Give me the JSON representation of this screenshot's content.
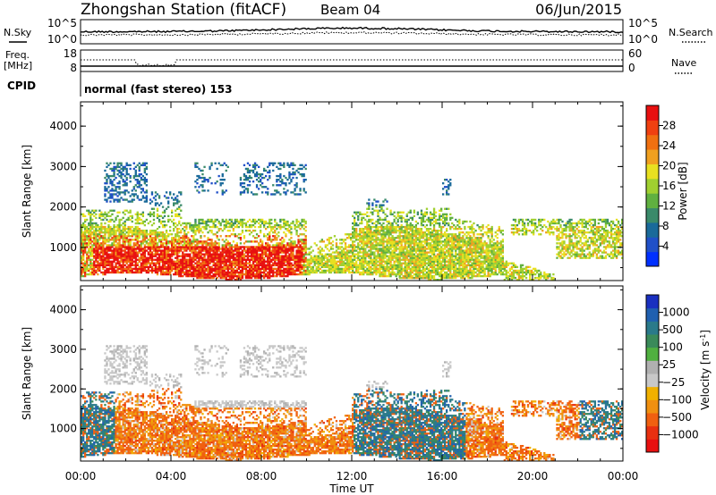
{
  "header": {
    "title": "Zhongshan Station (fitACF)",
    "beam": "Beam 04",
    "date": "06/Jun/2015"
  },
  "status_panels": {
    "nsky_label": "N.Sky",
    "nsearch_label": "N.Search",
    "freq_label_line1": "Freq.",
    "freq_label_line2": "[MHz]",
    "nave_label": "Nave",
    "cpid_label": "CPID",
    "cpid_text": "normal (fast stereo) 153",
    "noise_left_ticks": [
      "10^5",
      "10^0"
    ],
    "noise_right_ticks": [
      "10^5",
      "10^0"
    ],
    "freq_left_ticks": [
      "18",
      "8"
    ],
    "nave_right_ticks": [
      "60",
      "0"
    ]
  },
  "chart_data": [
    {
      "type": "heatmap",
      "name": "power",
      "xlabel": "Time UT",
      "ylabel": "Slant Range [km]",
      "x_ticks": [
        "00:00",
        "04:00",
        "08:00",
        "12:00",
        "16:00",
        "20:00",
        "00:00"
      ],
      "y_ticks": [
        1000,
        2000,
        3000,
        4000
      ],
      "ylim": [
        180,
        4600
      ],
      "xlim_hours": [
        0,
        24
      ],
      "colorbar_label": "Power [dB]",
      "colorbar_ticks": [
        "4",
        "8",
        "12",
        "16",
        "20",
        "24",
        "28"
      ],
      "colorbar_colors": [
        "#0030ff",
        "#2050c8",
        "#1a6a9a",
        "#3a8a6a",
        "#60b040",
        "#a0d030",
        "#e8e020",
        "#f0a020",
        "#f07010",
        "#f04010",
        "#e81010"
      ],
      "value_range": [
        0,
        30
      ]
    },
    {
      "type": "heatmap",
      "name": "velocity",
      "xlabel": "Time UT",
      "ylabel": "Slant Range [km]",
      "x_ticks": [
        "00:00",
        "04:00",
        "08:00",
        "12:00",
        "16:00",
        "20:00",
        "00:00"
      ],
      "y_ticks": [
        1000,
        2000,
        3000,
        4000
      ],
      "ylim": [
        180,
        4600
      ],
      "xlim_hours": [
        0,
        24
      ],
      "colorbar_label": "Velocity [m s",
      "colorbar_label_sup": "-1",
      "colorbar_label_end": "]",
      "colorbar_ticks": [
        "1000",
        "500",
        "100",
        "25",
        "−25",
        "−100",
        "−500",
        "−1000"
      ],
      "colorbar_colors": [
        "#1a30c0",
        "#2060b0",
        "#2a7a8a",
        "#3a8a5a",
        "#50b040",
        "#b0b0b0",
        "#c8c8c8",
        "#f0b000",
        "#f09010",
        "#f06010",
        "#e83010",
        "#e81010"
      ]
    }
  ],
  "colors": {
    "axis": "#000000",
    "ground_scatter": "#b4b4b4"
  }
}
